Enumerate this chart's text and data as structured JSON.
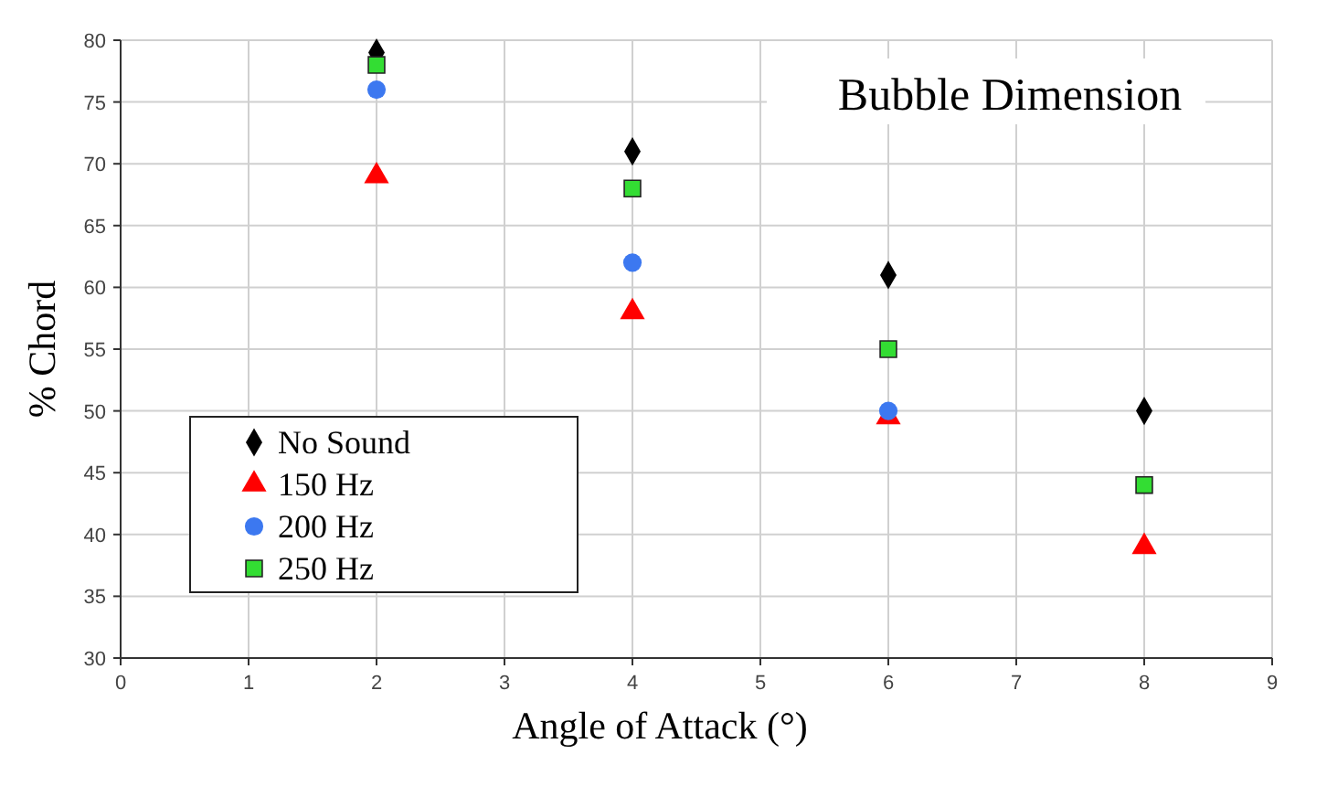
{
  "chart_data": {
    "type": "scatter",
    "title": "Bubble Dimension",
    "xlabel": "Angle of Attack (°)",
    "ylabel": "% Chord",
    "x": [
      2,
      4,
      6,
      8
    ],
    "series": [
      {
        "name": "No Sound",
        "color": "#000000",
        "marker": "diamond",
        "values": [
          79,
          71,
          61,
          50
        ]
      },
      {
        "name": "150 Hz",
        "color": "#ff0000",
        "marker": "triangle",
        "values": [
          69,
          58,
          49.5,
          39
        ]
      },
      {
        "name": "200 Hz",
        "color": "#3c78f0",
        "marker": "circle",
        "values": [
          76,
          62,
          50,
          null
        ]
      },
      {
        "name": "250 Hz",
        "color": "#33dd33",
        "marker": "square",
        "values": [
          78,
          68,
          55,
          44
        ]
      }
    ],
    "xlim": [
      0,
      9
    ],
    "xticks": [
      0,
      1,
      2,
      3,
      4,
      5,
      6,
      7,
      8,
      9
    ],
    "ylim": [
      30,
      80
    ],
    "yticks": [
      30,
      35,
      40,
      45,
      50,
      55,
      60,
      65,
      70,
      75,
      80
    ],
    "grid": true,
    "legend": "bottom left"
  }
}
